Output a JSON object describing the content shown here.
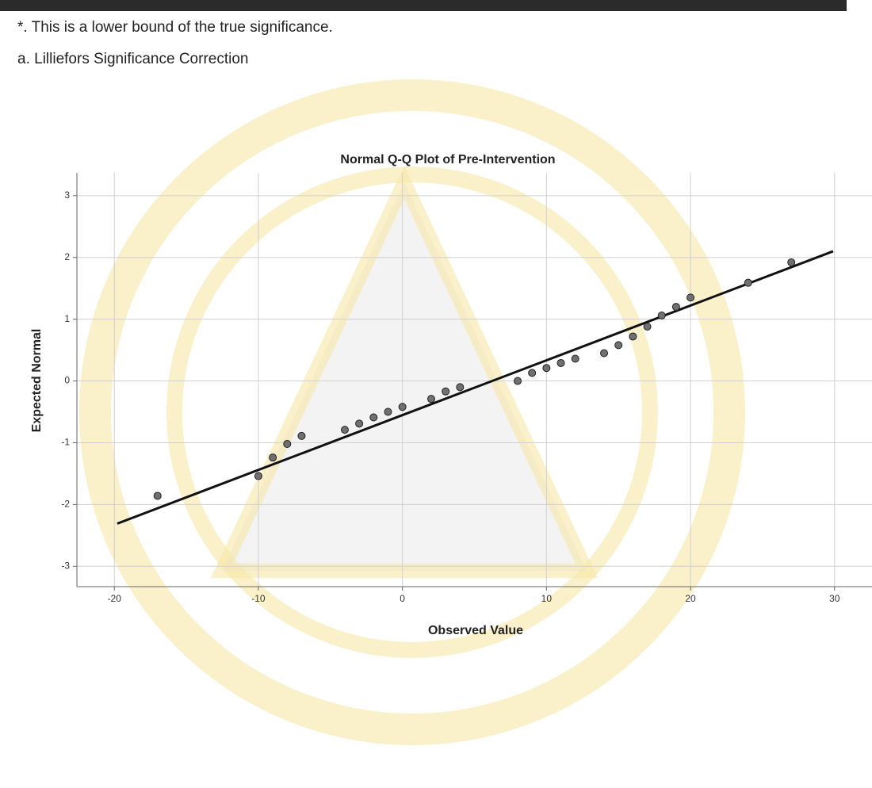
{
  "notes": [
    "*. This is a lower bound of the true significance.",
    "a. Lilliefors Significance Correction"
  ],
  "chart_data": {
    "type": "scatter",
    "title": "Normal Q-Q Plot of Pre-Intervention",
    "x_label": "Observed Value",
    "y_label": "Expected Normal",
    "x": [
      -17,
      -10,
      -9,
      -8,
      -7,
      -4,
      -3,
      -2,
      -1,
      0,
      2,
      3,
      4,
      8,
      9,
      10,
      11,
      12,
      14,
      15,
      16,
      17,
      18,
      19,
      20,
      24,
      27
    ],
    "y": [
      -1.86,
      -1.54,
      -1.24,
      -1.02,
      -0.89,
      -0.79,
      -0.69,
      -0.59,
      -0.5,
      -0.42,
      -0.29,
      -0.17,
      -0.1,
      0,
      0.13,
      0.21,
      0.29,
      0.36,
      0.45,
      0.58,
      0.72,
      0.88,
      1.06,
      1.2,
      1.35,
      1.59,
      1.92
    ],
    "color": "#707070",
    "reference_line": {
      "x": [
        -19.8,
        29.9
      ],
      "y": [
        -2.31,
        2.1
      ],
      "color": "#111111"
    },
    "xlim": [
      -22.6,
      32.6
    ],
    "ylim": [
      -3.33,
      3.37
    ],
    "xticks": [
      -20,
      -10,
      0,
      10,
      20,
      30
    ],
    "yticks": [
      -3,
      -2,
      -1,
      0,
      1,
      2,
      3
    ],
    "grid": true
  }
}
